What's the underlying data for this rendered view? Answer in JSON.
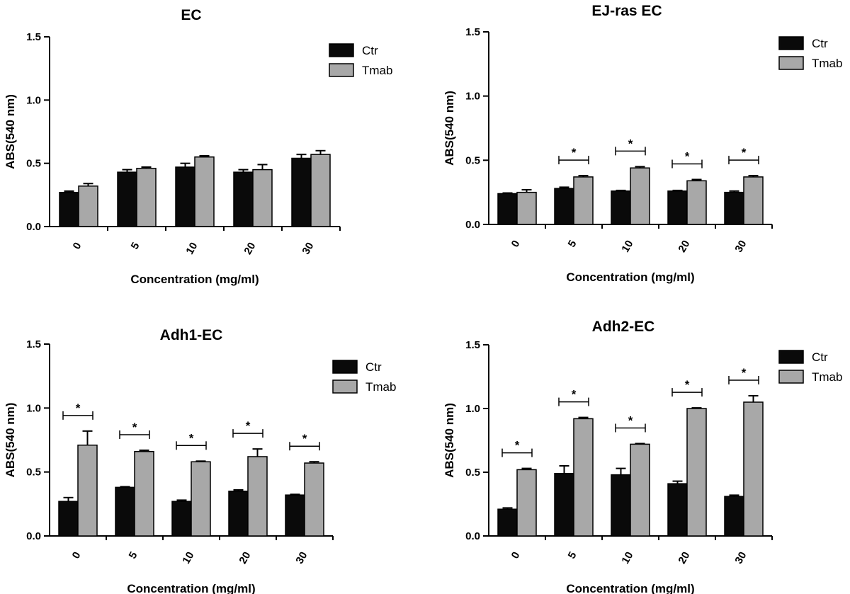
{
  "colors": {
    "ctr": "#0a0a0a",
    "tmab": "#a8a8a8",
    "axis": "#000000"
  },
  "chart_data": [
    {
      "type": "bar",
      "title": "EC",
      "xlabel": "Concentration (mg/ml)",
      "ylabel": "ABS(540 nm)",
      "ylim": [
        0,
        1.5
      ],
      "yticks": [
        "0.0",
        "0.5",
        "1.0",
        "1.5"
      ],
      "categories": [
        "0",
        "5",
        "10",
        "20",
        "30"
      ],
      "legend": "top-right",
      "series": [
        {
          "name": "Ctr",
          "values": [
            0.27,
            0.43,
            0.47,
            0.43,
            0.54
          ],
          "errors": [
            0.01,
            0.02,
            0.03,
            0.02,
            0.03
          ]
        },
        {
          "name": "Tmab",
          "values": [
            0.32,
            0.46,
            0.55,
            0.45,
            0.57
          ],
          "errors": [
            0.02,
            0.01,
            0.01,
            0.04,
            0.03
          ]
        }
      ],
      "significance": [
        false,
        false,
        false,
        false,
        false
      ]
    },
    {
      "type": "bar",
      "title": "EJ-ras EC",
      "xlabel": "Concentration (mg/ml)",
      "ylabel": "ABS(540 nm)",
      "ylim": [
        0,
        1.5
      ],
      "yticks": [
        "0.0",
        "0.5",
        "1.0",
        "1.5"
      ],
      "categories": [
        "0",
        "5",
        "10",
        "20",
        "30"
      ],
      "legend": "top-right",
      "series": [
        {
          "name": "Ctr",
          "values": [
            0.24,
            0.28,
            0.26,
            0.26,
            0.25
          ],
          "errors": [
            0.005,
            0.01,
            0.005,
            0.005,
            0.01
          ]
        },
        {
          "name": "Tmab",
          "values": [
            0.25,
            0.37,
            0.44,
            0.34,
            0.37
          ],
          "errors": [
            0.02,
            0.01,
            0.01,
            0.01,
            0.01
          ]
        }
      ],
      "significance": [
        false,
        true,
        true,
        true,
        true
      ]
    },
    {
      "type": "bar",
      "title": "Adh1-EC",
      "xlabel": "Concentration (mg/ml)",
      "ylabel": "ABS(540 nm)",
      "ylim": [
        0,
        1.5
      ],
      "yticks": [
        "0.0",
        "0.5",
        "1.0",
        "1.5"
      ],
      "categories": [
        "0",
        "5",
        "10",
        "20",
        "30"
      ],
      "legend": "top-right",
      "series": [
        {
          "name": "Ctr",
          "values": [
            0.27,
            0.38,
            0.27,
            0.35,
            0.32
          ],
          "errors": [
            0.03,
            0.005,
            0.01,
            0.01,
            0.005
          ]
        },
        {
          "name": "Tmab",
          "values": [
            0.71,
            0.66,
            0.58,
            0.62,
            0.57
          ],
          "errors": [
            0.11,
            0.01,
            0.005,
            0.06,
            0.01
          ]
        }
      ],
      "significance": [
        true,
        true,
        true,
        true,
        true
      ],
      "annotations": [
        "*",
        "*",
        "*",
        "*",
        "*"
      ]
    },
    {
      "type": "bar",
      "title": "Adh2-EC",
      "xlabel": "Concentration (mg/ml)",
      "ylabel": "ABS(540 nm)",
      "ylim": [
        0,
        1.5
      ],
      "yticks": [
        "0.0",
        "0.5",
        "1.0",
        "1.5"
      ],
      "categories": [
        "0",
        "5",
        "10",
        "20",
        "30"
      ],
      "legend": "top-right",
      "series": [
        {
          "name": "Ctr",
          "values": [
            0.21,
            0.49,
            0.48,
            0.41,
            0.31
          ],
          "errors": [
            0.01,
            0.06,
            0.05,
            0.02,
            0.01
          ]
        },
        {
          "name": "Tmab",
          "values": [
            0.52,
            0.92,
            0.72,
            1.0,
            1.05
          ],
          "errors": [
            0.01,
            0.01,
            0.005,
            0.005,
            0.05
          ]
        }
      ],
      "significance": [
        true,
        true,
        true,
        true,
        true
      ],
      "annotations": [
        "*",
        "*",
        "*",
        "*",
        "*"
      ]
    }
  ]
}
